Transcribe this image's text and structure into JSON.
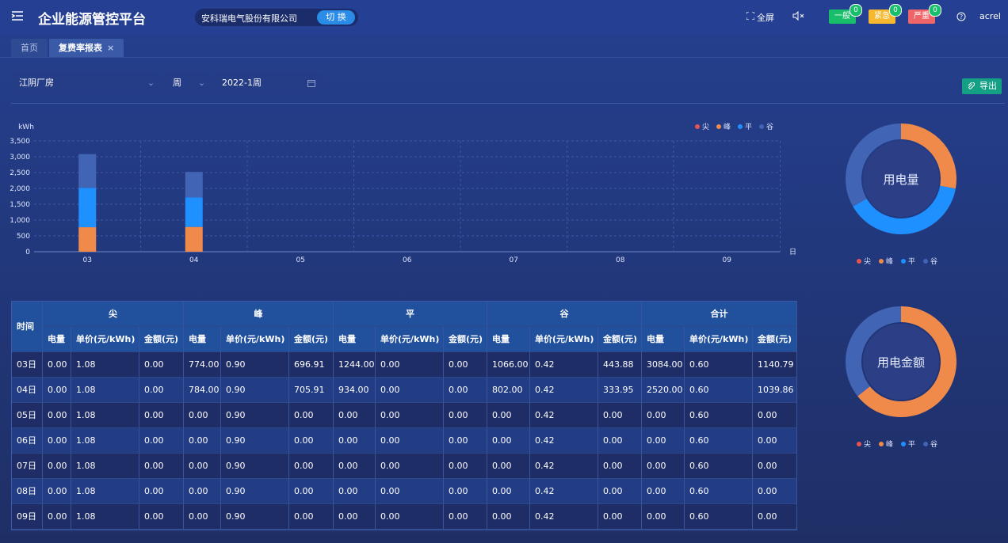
{
  "header": {
    "title": "企业能源管控平台",
    "company": "安科瑞电气股份有限公司",
    "switch_button": "切 换",
    "fullscreen": "全屏",
    "alarms": [
      {
        "label": "一般",
        "count": 0,
        "color": "#19be6b"
      },
      {
        "label": "紧急",
        "count": 0,
        "color": "#f5b82e"
      },
      {
        "label": "严重",
        "count": 0,
        "color": "#f0656a"
      }
    ],
    "user": "acrel"
  },
  "tabs": [
    {
      "label": "首页",
      "active": false
    },
    {
      "label": "复费率报表",
      "active": true
    }
  ],
  "filters": {
    "site": "江阴厂房",
    "period": "周",
    "date": "2022-1周"
  },
  "export_button": "导出",
  "chart_data": [
    {
      "type": "bar",
      "stacked": true,
      "y_label": "kWh",
      "x_label": "日",
      "categories": [
        "03",
        "04",
        "05",
        "06",
        "07",
        "08",
        "09"
      ],
      "series": [
        {
          "name": "尖",
          "color": "#e8534d",
          "values": [
            0,
            0,
            0,
            0,
            0,
            0,
            0
          ]
        },
        {
          "name": "峰",
          "color": "#f08a4b",
          "values": [
            774,
            784,
            0,
            0,
            0,
            0,
            0
          ]
        },
        {
          "name": "平",
          "color": "#1e90ff",
          "values": [
            1244,
            934,
            0,
            0,
            0,
            0,
            0
          ]
        },
        {
          "name": "谷",
          "color": "#4264b5",
          "values": [
            1066,
            802,
            0,
            0,
            0,
            0,
            0
          ]
        }
      ],
      "ylim": [
        0,
        3500
      ],
      "yticks": [
        0,
        500,
        {
          "value": 1000,
          "label": "1,000"
        },
        {
          "value": 1500,
          "label": "1,500"
        },
        {
          "value": 2000,
          "label": "2,000"
        },
        {
          "value": 2500,
          "label": "2,500"
        },
        {
          "value": 3000,
          "label": "3,000"
        },
        {
          "value": 3500,
          "label": "3,500"
        }
      ],
      "grid": true,
      "legend": "top-right"
    },
    {
      "type": "pie",
      "donut": true,
      "title": "用电量",
      "categories": [
        "尖",
        "峰",
        "平",
        "谷"
      ],
      "colors": [
        "#e8534d",
        "#f08a4b",
        "#1e90ff",
        "#4264b5"
      ],
      "values": [
        0,
        1558,
        2178,
        1868
      ]
    },
    {
      "type": "pie",
      "donut": true,
      "title": "用电金额",
      "categories": [
        "尖",
        "峰",
        "平",
        "谷"
      ],
      "colors": [
        "#e8534d",
        "#f08a4b",
        "#1e90ff",
        "#4264b5"
      ],
      "values": [
        0,
        1402.82,
        0,
        777.83
      ]
    }
  ],
  "table": {
    "time_header": "时间",
    "groups": [
      {
        "name": "尖",
        "columns": [
          "电量",
          "单价(元/kWh)",
          "金额(元)"
        ]
      },
      {
        "name": "峰",
        "columns": [
          "电量",
          "单价(元/kWh)",
          "金额(元)"
        ]
      },
      {
        "name": "平",
        "columns": [
          "电量",
          "单价(元/kWh)",
          "金额(元)"
        ]
      },
      {
        "name": "谷",
        "columns": [
          "电量",
          "单价(元/kWh)",
          "金额(元)"
        ]
      },
      {
        "name": "合计",
        "columns": [
          "电量",
          "单价(元/kWh)",
          "金额(元)"
        ]
      }
    ],
    "rows": [
      {
        "label": "03日",
        "cells": [
          "0.00",
          "1.08",
          "0.00",
          "774.00",
          "0.90",
          "696.91",
          "1244.00",
          "0.00",
          "0.00",
          "1066.00",
          "0.42",
          "443.88",
          "3084.00",
          "0.60",
          "1140.79"
        ]
      },
      {
        "label": "04日",
        "cells": [
          "0.00",
          "1.08",
          "0.00",
          "784.00",
          "0.90",
          "705.91",
          "934.00",
          "0.00",
          "0.00",
          "802.00",
          "0.42",
          "333.95",
          "2520.00",
          "0.60",
          "1039.86"
        ]
      },
      {
        "label": "05日",
        "cells": [
          "0.00",
          "1.08",
          "0.00",
          "0.00",
          "0.90",
          "0.00",
          "0.00",
          "0.00",
          "0.00",
          "0.00",
          "0.42",
          "0.00",
          "0.00",
          "0.60",
          "0.00"
        ]
      },
      {
        "label": "06日",
        "cells": [
          "0.00",
          "1.08",
          "0.00",
          "0.00",
          "0.90",
          "0.00",
          "0.00",
          "0.00",
          "0.00",
          "0.00",
          "0.42",
          "0.00",
          "0.00",
          "0.60",
          "0.00"
        ]
      },
      {
        "label": "07日",
        "cells": [
          "0.00",
          "1.08",
          "0.00",
          "0.00",
          "0.90",
          "0.00",
          "0.00",
          "0.00",
          "0.00",
          "0.00",
          "0.42",
          "0.00",
          "0.00",
          "0.60",
          "0.00"
        ]
      },
      {
        "label": "08日",
        "cells": [
          "0.00",
          "1.08",
          "0.00",
          "0.00",
          "0.90",
          "0.00",
          "0.00",
          "0.00",
          "0.00",
          "0.00",
          "0.42",
          "0.00",
          "0.00",
          "0.60",
          "0.00"
        ]
      },
      {
        "label": "09日",
        "cells": [
          "0.00",
          "1.08",
          "0.00",
          "0.00",
          "0.90",
          "0.00",
          "0.00",
          "0.00",
          "0.00",
          "0.00",
          "0.42",
          "0.00",
          "0.00",
          "0.60",
          "0.00"
        ]
      }
    ]
  }
}
